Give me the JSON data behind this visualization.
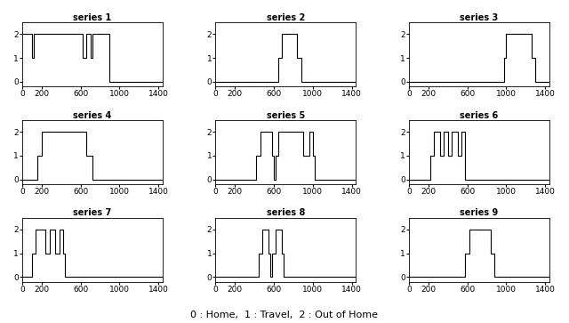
{
  "title": "0 : Home,  1 : Travel,  2 : Out of Home",
  "series": [
    {
      "name": "series 1",
      "steps": [
        [
          0,
          2
        ],
        [
          100,
          1
        ],
        [
          120,
          2
        ],
        [
          620,
          1
        ],
        [
          660,
          2
        ],
        [
          700,
          1
        ],
        [
          720,
          2
        ],
        [
          900,
          0
        ],
        [
          1440,
          0
        ]
      ]
    },
    {
      "name": "series 2",
      "steps": [
        [
          0,
          0
        ],
        [
          640,
          1
        ],
        [
          680,
          2
        ],
        [
          840,
          1
        ],
        [
          880,
          0
        ],
        [
          1440,
          0
        ]
      ]
    },
    {
      "name": "series 3",
      "steps": [
        [
          0,
          0
        ],
        [
          980,
          1
        ],
        [
          1000,
          2
        ],
        [
          1260,
          1
        ],
        [
          1300,
          0
        ],
        [
          1440,
          0
        ]
      ]
    },
    {
      "name": "series 4",
      "steps": [
        [
          0,
          0
        ],
        [
          160,
          1
        ],
        [
          200,
          2
        ],
        [
          660,
          1
        ],
        [
          720,
          0
        ],
        [
          1440,
          0
        ]
      ]
    },
    {
      "name": "series 5",
      "steps": [
        [
          0,
          0
        ],
        [
          420,
          1
        ],
        [
          460,
          2
        ],
        [
          580,
          1
        ],
        [
          600,
          0
        ],
        [
          620,
          1
        ],
        [
          640,
          2
        ],
        [
          900,
          1
        ],
        [
          960,
          2
        ],
        [
          1000,
          1
        ],
        [
          1020,
          0
        ],
        [
          1440,
          0
        ]
      ]
    },
    {
      "name": "series 6",
      "steps": [
        [
          0,
          0
        ],
        [
          220,
          1
        ],
        [
          260,
          2
        ],
        [
          320,
          1
        ],
        [
          360,
          2
        ],
        [
          400,
          1
        ],
        [
          440,
          2
        ],
        [
          500,
          1
        ],
        [
          540,
          2
        ],
        [
          580,
          0
        ],
        [
          1440,
          0
        ]
      ]
    },
    {
      "name": "series 7",
      "steps": [
        [
          0,
          0
        ],
        [
          100,
          1
        ],
        [
          140,
          2
        ],
        [
          240,
          1
        ],
        [
          280,
          2
        ],
        [
          340,
          1
        ],
        [
          380,
          2
        ],
        [
          420,
          1
        ],
        [
          440,
          0
        ],
        [
          1440,
          0
        ]
      ]
    },
    {
      "name": "series 8",
      "steps": [
        [
          0,
          0
        ],
        [
          440,
          1
        ],
        [
          480,
          2
        ],
        [
          540,
          1
        ],
        [
          560,
          0
        ],
        [
          580,
          1
        ],
        [
          620,
          2
        ],
        [
          680,
          1
        ],
        [
          700,
          0
        ],
        [
          1440,
          0
        ]
      ]
    },
    {
      "name": "series 9",
      "steps": [
        [
          0,
          0
        ],
        [
          580,
          1
        ],
        [
          620,
          2
        ],
        [
          840,
          1
        ],
        [
          880,
          0
        ],
        [
          1440,
          0
        ]
      ]
    }
  ],
  "xlim": [
    0,
    1440
  ],
  "ylim": [
    -0.2,
    2.5
  ],
  "yticks": [
    0,
    1,
    2
  ],
  "xticks": [
    0,
    200,
    600,
    1000,
    1400
  ],
  "figsize": [
    6.4,
    3.63
  ],
  "dpi": 100,
  "background_color": "#ffffff",
  "line_color": "#000000",
  "title_fontsize": 7,
  "tick_fontsize": 6.5
}
